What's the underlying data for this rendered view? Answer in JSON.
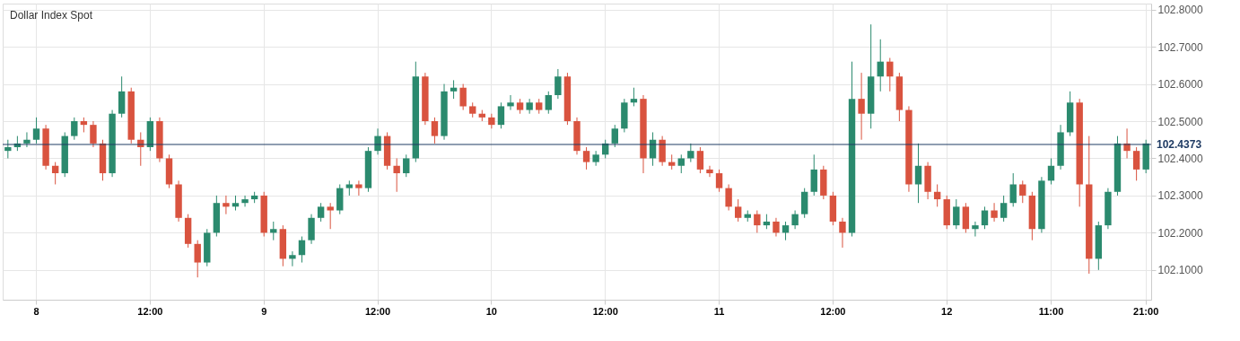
{
  "chart_data": {
    "type": "candlestick",
    "title": "Dollar Index Spot",
    "categories": [
      null,
      null,
      null,
      "8",
      null,
      null,
      null,
      null,
      null,
      null,
      null,
      null,
      null,
      null,
      null,
      "12:00",
      null,
      null,
      null,
      null,
      null,
      null,
      null,
      null,
      null,
      null,
      null,
      "9",
      null,
      null,
      null,
      null,
      null,
      null,
      null,
      null,
      null,
      null,
      null,
      "12:00",
      null,
      null,
      null,
      null,
      null,
      null,
      null,
      null,
      null,
      null,
      null,
      "10",
      null,
      null,
      null,
      null,
      null,
      null,
      null,
      null,
      null,
      null,
      null,
      "12:00",
      null,
      null,
      null,
      null,
      null,
      null,
      null,
      null,
      null,
      null,
      null,
      "11",
      null,
      null,
      null,
      null,
      null,
      null,
      null,
      null,
      null,
      null,
      null,
      "12:00",
      null,
      null,
      null,
      null,
      null,
      null,
      null,
      null,
      null,
      null,
      null,
      "12",
      null,
      null,
      null,
      null,
      null,
      null,
      null,
      null,
      null,
      null,
      "11:00",
      null,
      null,
      null,
      null,
      null,
      null,
      null,
      null,
      null,
      "21:00"
    ],
    "ohlc": [
      [
        102.42,
        102.45,
        102.4,
        102.43
      ],
      [
        102.43,
        102.46,
        102.42,
        102.44
      ],
      [
        102.44,
        102.47,
        102.43,
        102.45
      ],
      [
        102.45,
        102.51,
        102.44,
        102.48
      ],
      [
        102.48,
        102.49,
        102.37,
        102.38
      ],
      [
        102.38,
        102.39,
        102.33,
        102.36
      ],
      [
        102.36,
        102.47,
        102.35,
        102.46
      ],
      [
        102.46,
        102.51,
        102.45,
        102.5
      ],
      [
        102.5,
        102.51,
        102.47,
        102.49
      ],
      [
        102.49,
        102.5,
        102.43,
        102.44
      ],
      [
        102.44,
        102.45,
        102.34,
        102.36
      ],
      [
        102.36,
        102.53,
        102.35,
        102.52
      ],
      [
        102.52,
        102.62,
        102.51,
        102.58
      ],
      [
        102.58,
        102.59,
        102.44,
        102.45
      ],
      [
        102.45,
        102.47,
        102.38,
        102.43
      ],
      [
        102.43,
        102.51,
        102.42,
        102.5
      ],
      [
        102.5,
        102.51,
        102.39,
        102.4
      ],
      [
        102.4,
        102.41,
        102.32,
        102.33
      ],
      [
        102.33,
        102.34,
        102.23,
        102.24
      ],
      [
        102.24,
        102.25,
        102.16,
        102.17
      ],
      [
        102.17,
        102.18,
        102.08,
        102.12
      ],
      [
        102.12,
        102.21,
        102.11,
        102.2
      ],
      [
        102.2,
        102.3,
        102.19,
        102.28
      ],
      [
        102.28,
        102.3,
        102.25,
        102.27
      ],
      [
        102.27,
        102.3,
        102.26,
        102.28
      ],
      [
        102.28,
        102.3,
        102.27,
        102.29
      ],
      [
        102.29,
        102.31,
        102.28,
        102.3
      ],
      [
        102.3,
        102.31,
        102.19,
        102.2
      ],
      [
        102.2,
        102.23,
        102.18,
        102.21
      ],
      [
        102.21,
        102.22,
        102.11,
        102.13
      ],
      [
        102.13,
        102.15,
        102.11,
        102.14
      ],
      [
        102.14,
        102.19,
        102.12,
        102.18
      ],
      [
        102.18,
        102.25,
        102.17,
        102.24
      ],
      [
        102.24,
        102.28,
        102.23,
        102.27
      ],
      [
        102.27,
        102.28,
        102.21,
        102.26
      ],
      [
        102.26,
        102.33,
        102.25,
        102.32
      ],
      [
        102.32,
        102.34,
        102.3,
        102.33
      ],
      [
        102.33,
        102.34,
        102.3,
        102.32
      ],
      [
        102.32,
        102.43,
        102.31,
        102.42
      ],
      [
        102.42,
        102.48,
        102.41,
        102.46
      ],
      [
        102.46,
        102.47,
        102.37,
        102.38
      ],
      [
        102.38,
        102.4,
        102.31,
        102.36
      ],
      [
        102.36,
        102.41,
        102.35,
        102.4
      ],
      [
        102.4,
        102.66,
        102.39,
        102.62
      ],
      [
        102.62,
        102.63,
        102.49,
        102.5
      ],
      [
        102.5,
        102.51,
        102.44,
        102.46
      ],
      [
        102.46,
        102.6,
        102.45,
        102.58
      ],
      [
        102.58,
        102.61,
        102.56,
        102.59
      ],
      [
        102.59,
        102.6,
        102.53,
        102.54
      ],
      [
        102.54,
        102.55,
        102.51,
        102.52
      ],
      [
        102.52,
        102.53,
        102.5,
        102.51
      ],
      [
        102.51,
        102.52,
        102.48,
        102.49
      ],
      [
        102.49,
        102.55,
        102.48,
        102.54
      ],
      [
        102.54,
        102.57,
        102.53,
        102.55
      ],
      [
        102.55,
        102.56,
        102.52,
        102.53
      ],
      [
        102.53,
        102.56,
        102.52,
        102.55
      ],
      [
        102.55,
        102.56,
        102.52,
        102.53
      ],
      [
        102.53,
        102.58,
        102.52,
        102.57
      ],
      [
        102.57,
        102.64,
        102.56,
        102.62
      ],
      [
        102.62,
        102.63,
        102.49,
        102.5
      ],
      [
        102.5,
        102.51,
        102.41,
        102.42
      ],
      [
        102.42,
        102.43,
        102.37,
        102.39
      ],
      [
        102.39,
        102.42,
        102.38,
        102.41
      ],
      [
        102.41,
        102.45,
        102.4,
        102.44
      ],
      [
        102.44,
        102.49,
        102.43,
        102.48
      ],
      [
        102.48,
        102.56,
        102.47,
        102.55
      ],
      [
        102.55,
        102.59,
        102.54,
        102.56
      ],
      [
        102.56,
        102.57,
        102.36,
        102.4
      ],
      [
        102.4,
        102.47,
        102.38,
        102.45
      ],
      [
        102.45,
        102.46,
        102.38,
        102.39
      ],
      [
        102.39,
        102.41,
        102.37,
        102.38
      ],
      [
        102.38,
        102.41,
        102.36,
        102.4
      ],
      [
        102.4,
        102.44,
        102.39,
        102.42
      ],
      [
        102.42,
        102.43,
        102.36,
        102.37
      ],
      [
        102.37,
        102.38,
        102.35,
        102.36
      ],
      [
        102.36,
        102.37,
        102.31,
        102.32
      ],
      [
        102.32,
        102.33,
        102.26,
        102.27
      ],
      [
        102.27,
        102.29,
        102.23,
        102.24
      ],
      [
        102.24,
        102.26,
        102.23,
        102.25
      ],
      [
        102.25,
        102.26,
        102.2,
        102.22
      ],
      [
        102.22,
        102.25,
        102.21,
        102.23
      ],
      [
        102.23,
        102.24,
        102.19,
        102.2
      ],
      [
        102.2,
        102.23,
        102.18,
        102.22
      ],
      [
        102.22,
        102.26,
        102.21,
        102.25
      ],
      [
        102.25,
        102.32,
        102.24,
        102.31
      ],
      [
        102.31,
        102.41,
        102.3,
        102.37
      ],
      [
        102.37,
        102.38,
        102.29,
        102.3
      ],
      [
        102.3,
        102.31,
        102.22,
        102.23
      ],
      [
        102.23,
        102.24,
        102.16,
        102.2
      ],
      [
        102.2,
        102.66,
        102.19,
        102.56
      ],
      [
        102.56,
        102.63,
        102.45,
        102.52
      ],
      [
        102.52,
        102.76,
        102.48,
        102.62
      ],
      [
        102.62,
        102.72,
        102.58,
        102.66
      ],
      [
        102.66,
        102.67,
        102.58,
        102.62
      ],
      [
        102.62,
        102.63,
        102.5,
        102.53
      ],
      [
        102.53,
        102.54,
        102.31,
        102.33
      ],
      [
        102.33,
        102.44,
        102.28,
        102.38
      ],
      [
        102.38,
        102.39,
        102.29,
        102.31
      ],
      [
        102.31,
        102.33,
        102.27,
        102.29
      ],
      [
        102.29,
        102.3,
        102.21,
        102.22
      ],
      [
        102.22,
        102.29,
        102.21,
        102.27
      ],
      [
        102.27,
        102.28,
        102.2,
        102.21
      ],
      [
        102.21,
        102.23,
        102.19,
        102.22
      ],
      [
        102.22,
        102.27,
        102.21,
        102.26
      ],
      [
        102.26,
        102.28,
        102.23,
        102.24
      ],
      [
        102.24,
        102.3,
        102.23,
        102.28
      ],
      [
        102.28,
        102.36,
        102.27,
        102.33
      ],
      [
        102.33,
        102.34,
        102.28,
        102.3
      ],
      [
        102.3,
        102.31,
        102.18,
        102.21
      ],
      [
        102.21,
        102.35,
        102.2,
        102.34
      ],
      [
        102.34,
        102.4,
        102.33,
        102.38
      ],
      [
        102.38,
        102.49,
        102.37,
        102.47
      ],
      [
        102.47,
        102.58,
        102.46,
        102.55
      ],
      [
        102.55,
        102.56,
        102.27,
        102.33
      ],
      [
        102.33,
        102.46,
        102.09,
        102.13
      ],
      [
        102.13,
        102.23,
        102.1,
        102.22
      ],
      [
        102.22,
        102.32,
        102.21,
        102.31
      ],
      [
        102.31,
        102.46,
        102.3,
        102.44
      ],
      [
        102.44,
        102.48,
        102.4,
        102.42
      ],
      [
        102.42,
        102.43,
        102.34,
        102.37
      ],
      [
        102.37,
        102.45,
        102.36,
        102.44
      ]
    ],
    "colors": [
      "#2b8a6e",
      "#2b8a6e",
      "#2b8a6e",
      "#2b8a6e",
      "#d9533f",
      "#d9533f",
      "#2b8a6e",
      "#2b8a6e",
      "#d9533f",
      "#d9533f",
      "#d9533f",
      "#2b8a6e",
      "#2b8a6e",
      "#d9533f",
      "#d9533f",
      "#2b8a6e",
      "#d9533f",
      "#d9533f",
      "#d9533f",
      "#d9533f",
      "#d9533f",
      "#2b8a6e",
      "#2b8a6e",
      "#d9533f",
      "#2b8a6e",
      "#2b8a6e",
      "#2b8a6e",
      "#d9533f",
      "#2b8a6e",
      "#d9533f",
      "#2b8a6e",
      "#2b8a6e",
      "#2b8a6e",
      "#2b8a6e",
      "#d9533f",
      "#2b8a6e",
      "#2b8a6e",
      "#d9533f",
      "#2b8a6e",
      "#2b8a6e",
      "#d9533f",
      "#d9533f",
      "#2b8a6e",
      "#2b8a6e",
      "#d9533f",
      "#d9533f",
      "#2b8a6e",
      "#2b8a6e",
      "#d9533f",
      "#d9533f",
      "#d9533f",
      "#d9533f",
      "#2b8a6e",
      "#2b8a6e",
      "#d9533f",
      "#2b8a6e",
      "#d9533f",
      "#2b8a6e",
      "#2b8a6e",
      "#d9533f",
      "#d9533f",
      "#d9533f",
      "#2b8a6e",
      "#2b8a6e",
      "#2b8a6e",
      "#2b8a6e",
      "#2b8a6e",
      "#d9533f",
      "#2b8a6e",
      "#d9533f",
      "#d9533f",
      "#2b8a6e",
      "#2b8a6e",
      "#d9533f",
      "#d9533f",
      "#d9533f",
      "#d9533f",
      "#d9533f",
      "#2b8a6e",
      "#d9533f",
      "#2b8a6e",
      "#d9533f",
      "#2b8a6e",
      "#2b8a6e",
      "#2b8a6e",
      "#2b8a6e",
      "#d9533f",
      "#d9533f",
      "#d9533f",
      "#2b8a6e",
      "#d9533f",
      "#2b8a6e",
      "#2b8a6e",
      "#d9533f",
      "#d9533f",
      "#d9533f",
      "#2b8a6e",
      "#d9533f",
      "#d9533f",
      "#d9533f",
      "#2b8a6e",
      "#d9533f",
      "#2b8a6e",
      "#2b8a6e",
      "#d9533f",
      "#2b8a6e",
      "#2b8a6e",
      "#d9533f",
      "#d9533f",
      "#2b8a6e",
      "#2b8a6e",
      "#2b8a6e",
      "#2b8a6e",
      "#d9533f",
      "#d9533f",
      "#2b8a6e",
      "#2b8a6e",
      "#2b8a6e",
      "#d9533f",
      "#d9533f",
      "#2b8a6e"
    ],
    "ylim": [
      102.02,
      102.816
    ],
    "yticks": [
      {
        "value": 102.1,
        "label": "102.1000"
      },
      {
        "value": 102.2,
        "label": "102.2000"
      },
      {
        "value": 102.3,
        "label": "102.3000"
      },
      {
        "value": 102.4,
        "label": "102.4000"
      },
      {
        "value": 102.5,
        "label": "102.5000"
      },
      {
        "value": 102.6,
        "label": "102.6000"
      },
      {
        "value": 102.7,
        "label": "102.7000"
      },
      {
        "value": 102.8,
        "label": "102.8000"
      }
    ],
    "ref_lines": [
      {
        "axis": "y",
        "value": 102.4373,
        "label": "102.4373",
        "color": "#1f3b63"
      }
    ],
    "grid": true
  }
}
